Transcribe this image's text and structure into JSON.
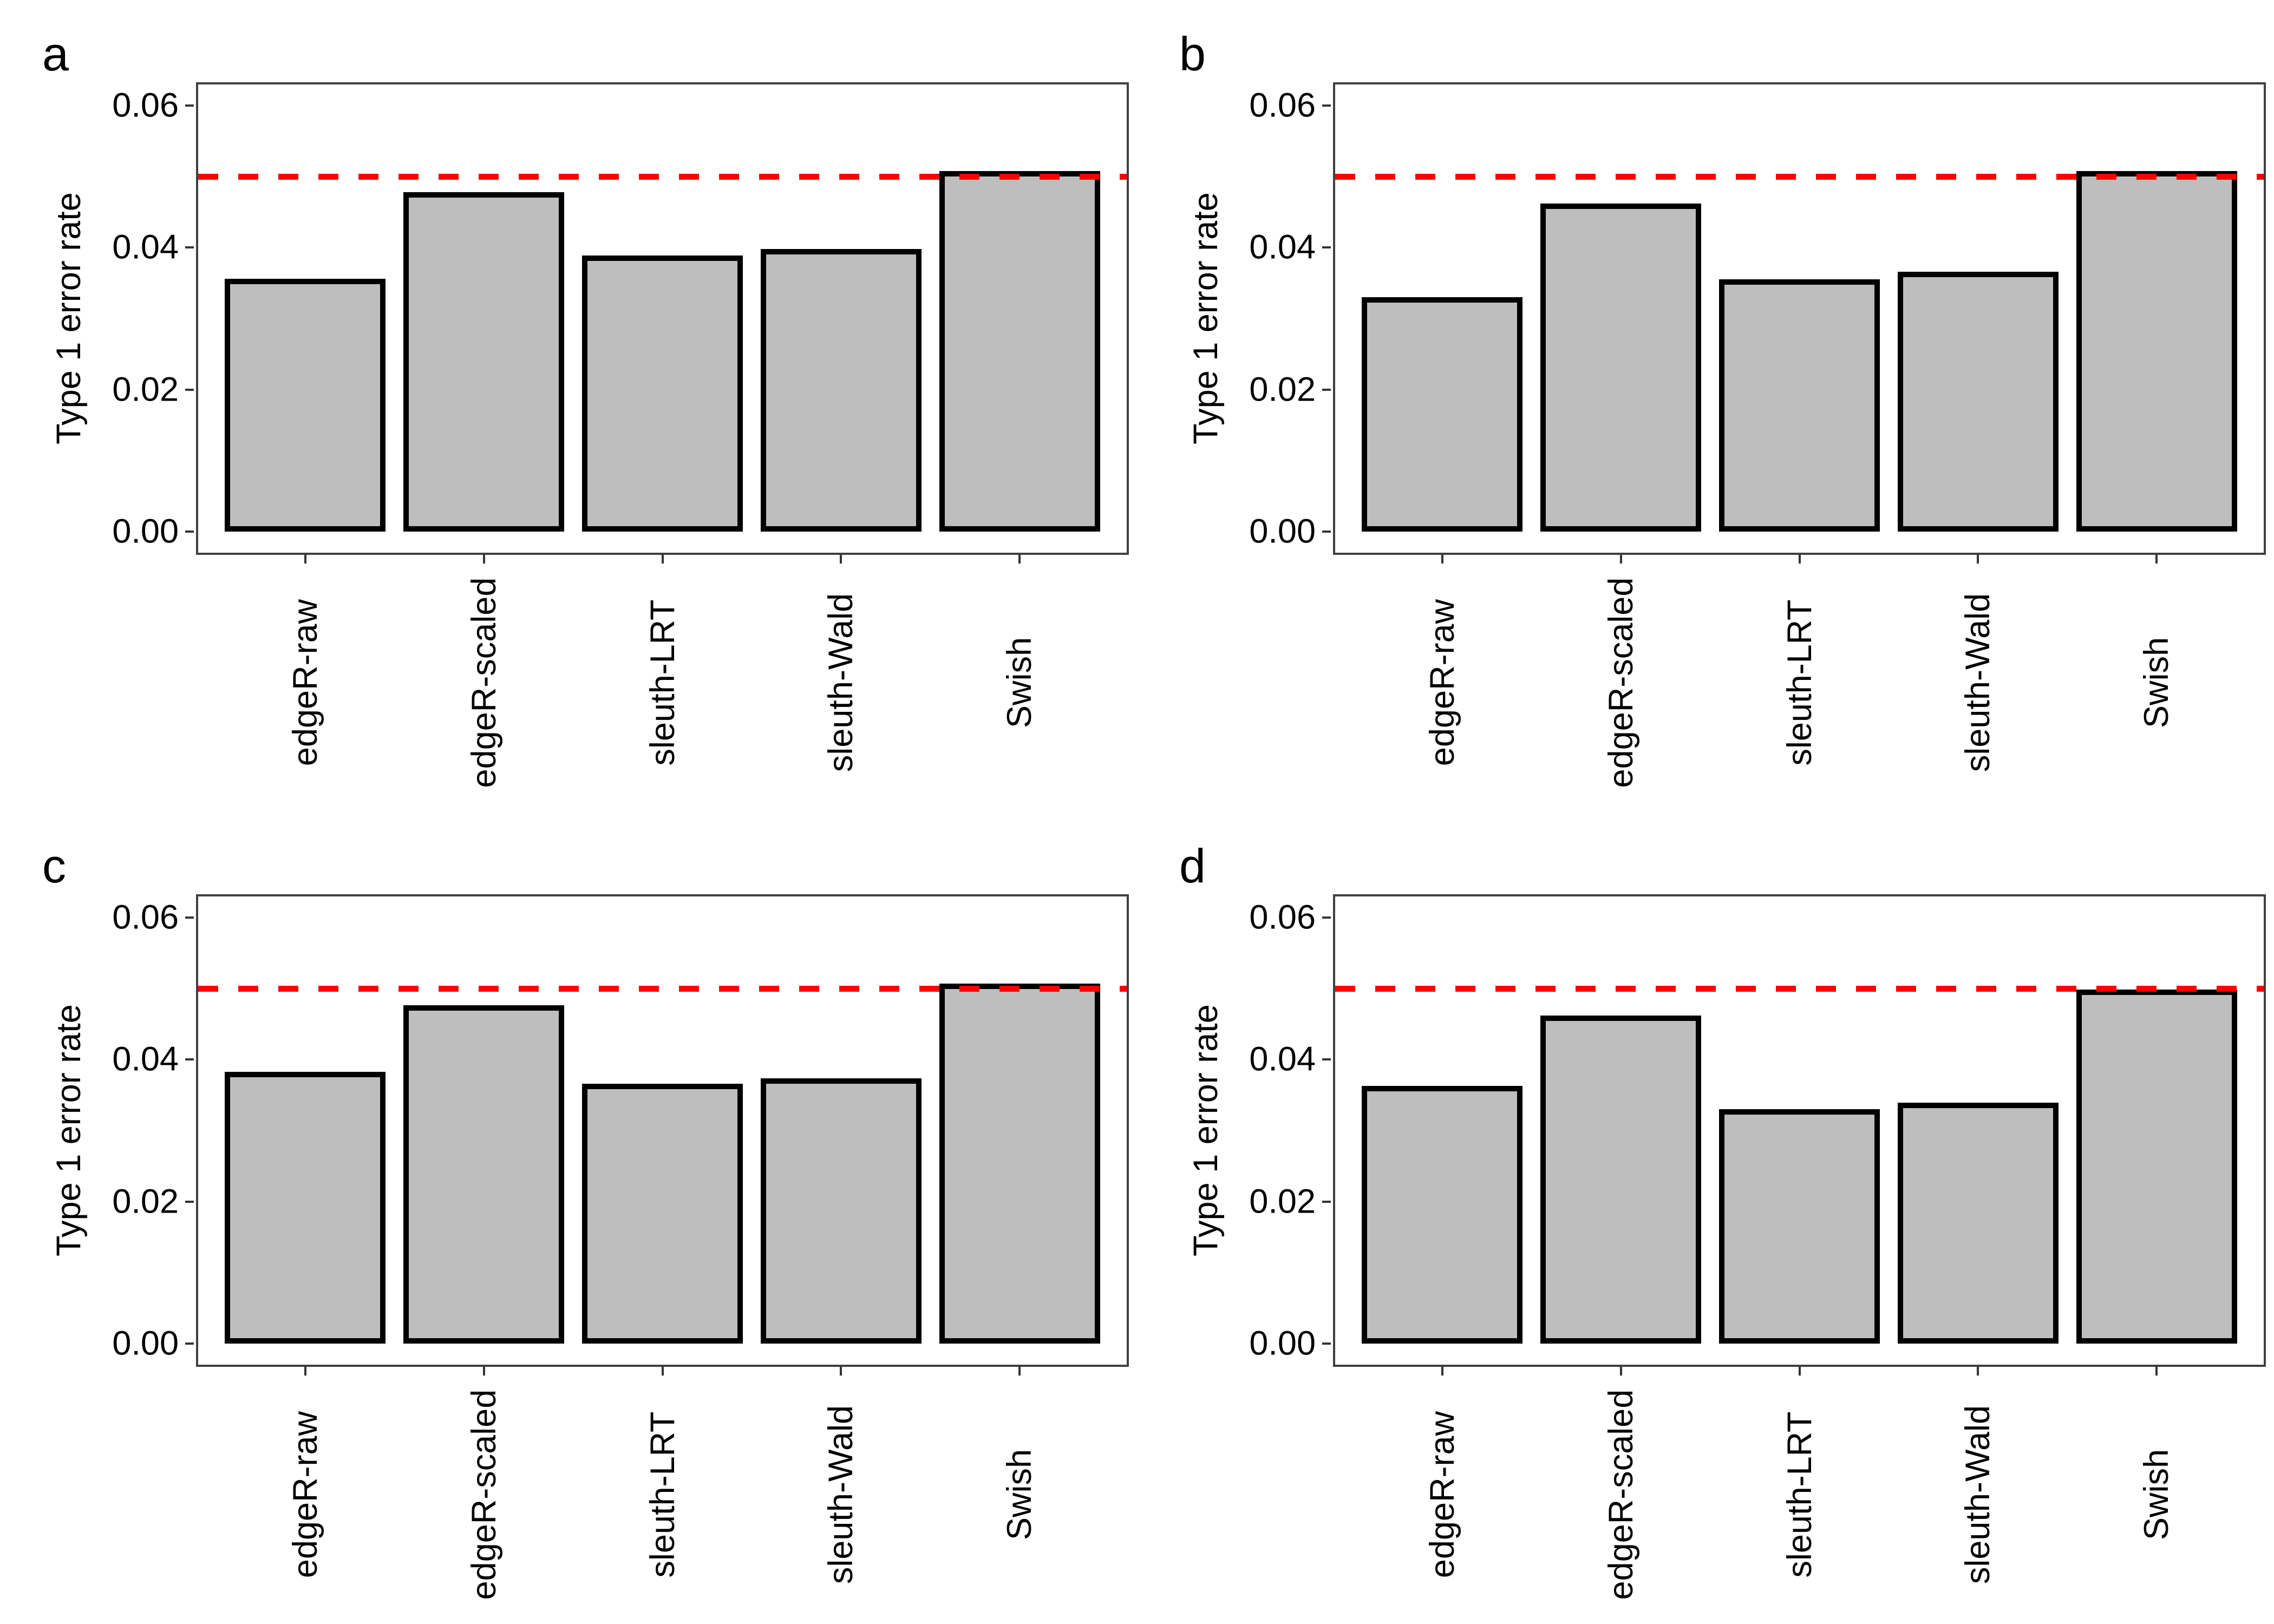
{
  "figure": {
    "layout": "2x2-panel-grid",
    "background": "#FFFFFF",
    "panel_letters": [
      "a",
      "b",
      "c",
      "d"
    ]
  },
  "axis": {
    "ylabel": "Type 1 error rate",
    "ytick_labels": [
      "0.00",
      "0.02",
      "0.04",
      "0.06"
    ],
    "ytick_values": [
      0,
      0.02,
      0.04,
      0.06
    ],
    "categories": [
      "edgeR-raw",
      "edgeR-scaled",
      "sleuth-LRT",
      "sleuth-Wald",
      "Swish"
    ]
  },
  "style": {
    "bar_fill": "#BEBEBE",
    "bar_stroke": "#000000",
    "threshold": "#FF0000",
    "panel_border": "#404040",
    "tick": "#333333",
    "text": "#000000",
    "bg": "#FFFFFF"
  },
  "chart_data": [
    {
      "panel": "a",
      "type": "bar",
      "categories": [
        "edgeR-raw",
        "edgeR-scaled",
        "sleuth-LRT",
        "sleuth-Wald",
        "Swish"
      ],
      "values": [
        0.0356,
        0.0478,
        0.0389,
        0.0398,
        0.0508
      ],
      "title": "",
      "xlabel": "",
      "ylabel": "Type 1 error rate",
      "ylim": [
        0,
        0.06
      ],
      "yticks": [
        0,
        0.02,
        0.04,
        0.06
      ],
      "threshold_line": 0.05,
      "grid": false,
      "legend": false
    },
    {
      "panel": "b",
      "type": "bar",
      "categories": [
        "edgeR-raw",
        "edgeR-scaled",
        "sleuth-LRT",
        "sleuth-Wald",
        "Swish"
      ],
      "values": [
        0.033,
        0.0462,
        0.0355,
        0.0366,
        0.0508
      ],
      "title": "",
      "xlabel": "",
      "ylabel": "Type 1 error rate",
      "ylim": [
        0,
        0.06
      ],
      "yticks": [
        0,
        0.02,
        0.04,
        0.06
      ],
      "threshold_line": 0.05,
      "grid": false,
      "legend": false
    },
    {
      "panel": "c",
      "type": "bar",
      "categories": [
        "edgeR-raw",
        "edgeR-scaled",
        "sleuth-LRT",
        "sleuth-Wald",
        "Swish"
      ],
      "values": [
        0.0383,
        0.0477,
        0.0366,
        0.0374,
        0.0507
      ],
      "title": "",
      "xlabel": "",
      "ylabel": "Type 1 error rate",
      "ylim": [
        0,
        0.06
      ],
      "yticks": [
        0,
        0.02,
        0.04,
        0.06
      ],
      "threshold_line": 0.05,
      "grid": false,
      "legend": false
    },
    {
      "panel": "d",
      "type": "bar",
      "categories": [
        "edgeR-raw",
        "edgeR-scaled",
        "sleuth-LRT",
        "sleuth-Wald",
        "Swish"
      ],
      "values": [
        0.0363,
        0.0462,
        0.033,
        0.0339,
        0.0499
      ],
      "title": "",
      "xlabel": "",
      "ylabel": "Type 1 error rate",
      "ylim": [
        0,
        0.06
      ],
      "yticks": [
        0,
        0.02,
        0.04,
        0.06
      ],
      "threshold_line": 0.05,
      "grid": false,
      "legend": false
    }
  ]
}
